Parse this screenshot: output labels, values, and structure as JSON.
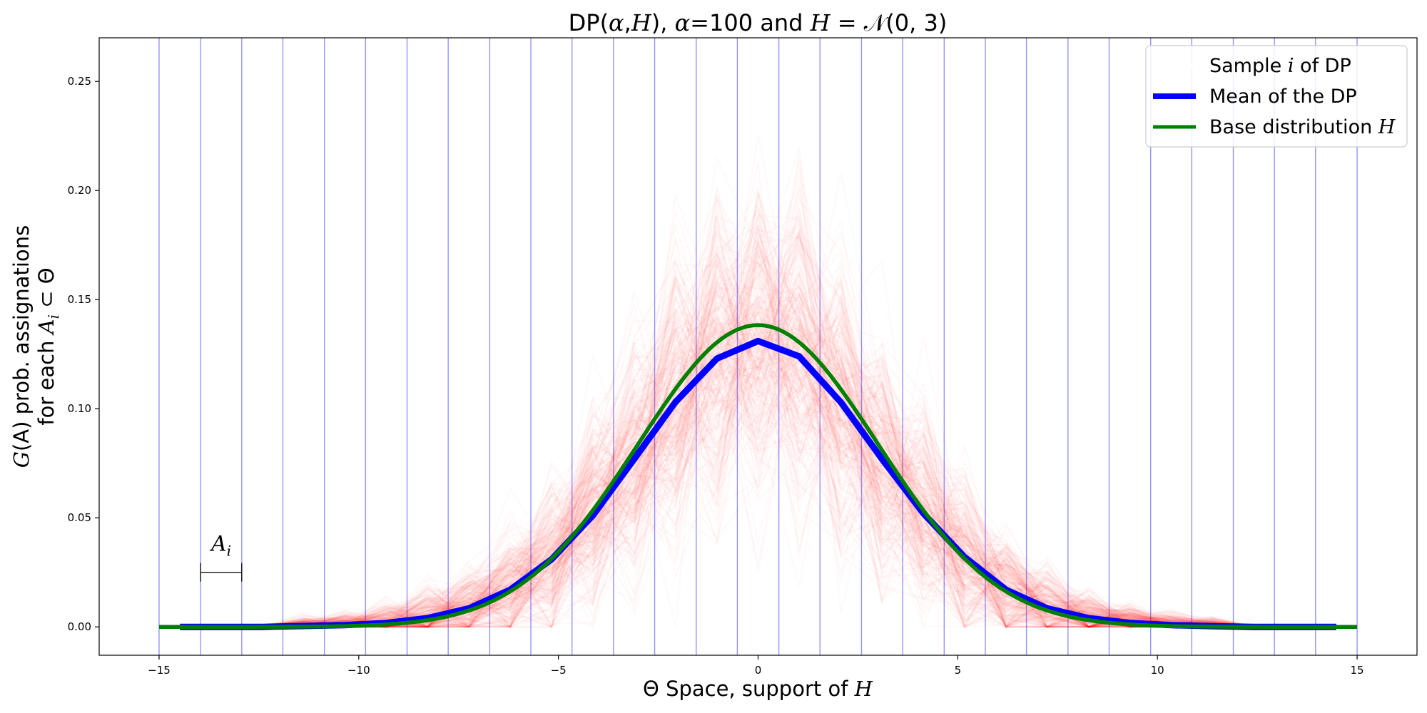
{
  "chart_data": {
    "type": "line",
    "title": "DP(α,H), α=100 and H = 𝒩(0, 3)",
    "title_parts": {
      "prefix": "DP(",
      "alpha": "α",
      "comma": ",",
      "H": "H",
      "suffix_1": "), ",
      "alpha_2": "α",
      "equals_100": "=100 and ",
      "H_2": "H",
      "normal": " = 𝒩(0, 3)"
    },
    "xlabel": "Θ Space, support of H",
    "xlabel_parts": {
      "text": "Θ Space, support of ",
      "H": "H"
    },
    "ylabel": "G(A) prob. assignations for each A_i ⊂ Θ",
    "ylabel_parts": {
      "line1_G": "G",
      "line1_rest": "(A) prob. assignations",
      "line2_text": "for each ",
      "line2_A": "A",
      "line2_i": "i",
      "line2_rest": " ⊂ Θ"
    },
    "xlim": [
      -16.5,
      16.5
    ],
    "ylim": [
      -0.013,
      0.27
    ],
    "x_ticks": [
      -15,
      -10,
      -5,
      0,
      5,
      10,
      15
    ],
    "x_tick_labels": [
      "−15",
      "−10",
      "−5",
      "0",
      "5",
      "10",
      "15"
    ],
    "y_ticks": [
      0.0,
      0.05,
      0.1,
      0.15,
      0.2,
      0.25
    ],
    "y_tick_labels": [
      "0.00",
      "0.05",
      "0.10",
      "0.15",
      "0.20",
      "0.25"
    ],
    "partition_edges": [
      -15.0,
      -13.96,
      -12.93,
      -11.9,
      -10.86,
      -9.83,
      -8.79,
      -7.76,
      -6.72,
      -5.69,
      -4.66,
      -3.62,
      -2.59,
      -1.55,
      -0.52,
      0.52,
      1.55,
      2.59,
      3.62,
      4.66,
      5.69,
      6.72,
      7.76,
      8.79,
      9.83,
      10.86,
      11.9,
      12.93,
      13.96,
      15.0
    ],
    "legend_position": "upper right",
    "legend": [
      {
        "label_pre": "Sample ",
        "label_ital": "i",
        "label_post": " of DP",
        "color": "#ffffff"
      },
      {
        "label_pre": "Mean of the DP",
        "label_ital": "",
        "label_post": "",
        "color": "#0000ff"
      },
      {
        "label_pre": "Base distribution ",
        "label_ital": "H",
        "label_post": "",
        "color": "#008000"
      }
    ],
    "series": [
      {
        "name": "Mean of the DP",
        "color": "#0000ff",
        "x": [
          -14.48,
          -13.45,
          -12.41,
          -11.38,
          -10.34,
          -9.31,
          -8.28,
          -7.24,
          -6.21,
          -5.17,
          -4.14,
          -3.1,
          -2.07,
          -1.03,
          0.0,
          1.03,
          2.07,
          3.1,
          4.14,
          5.17,
          6.21,
          7.24,
          8.28,
          9.31,
          10.34,
          11.38,
          12.41,
          13.45,
          14.48
        ],
        "y": [
          0.0,
          0.0,
          0.0,
          0.0004,
          0.0008,
          0.0018,
          0.004,
          0.0085,
          0.017,
          0.031,
          0.051,
          0.077,
          0.103,
          0.123,
          0.131,
          0.124,
          0.103,
          0.077,
          0.052,
          0.032,
          0.017,
          0.0085,
          0.004,
          0.0018,
          0.0008,
          0.0003,
          0.0,
          0.0,
          0.0
        ]
      },
      {
        "name": "Base distribution H",
        "color": "#008000",
        "mu": 0,
        "sigma": 3,
        "x_range": [
          -15,
          15
        ]
      }
    ],
    "samples": {
      "count": 300,
      "color": "#ff0000",
      "opacity": 0.025
    },
    "annotation": {
      "label_A": "A",
      "label_i": "i",
      "x_start": -13.96,
      "x_end": -12.93,
      "y": 0.025
    },
    "colors": {
      "partition_lines": "#8080ff",
      "axes": "#000000"
    }
  }
}
